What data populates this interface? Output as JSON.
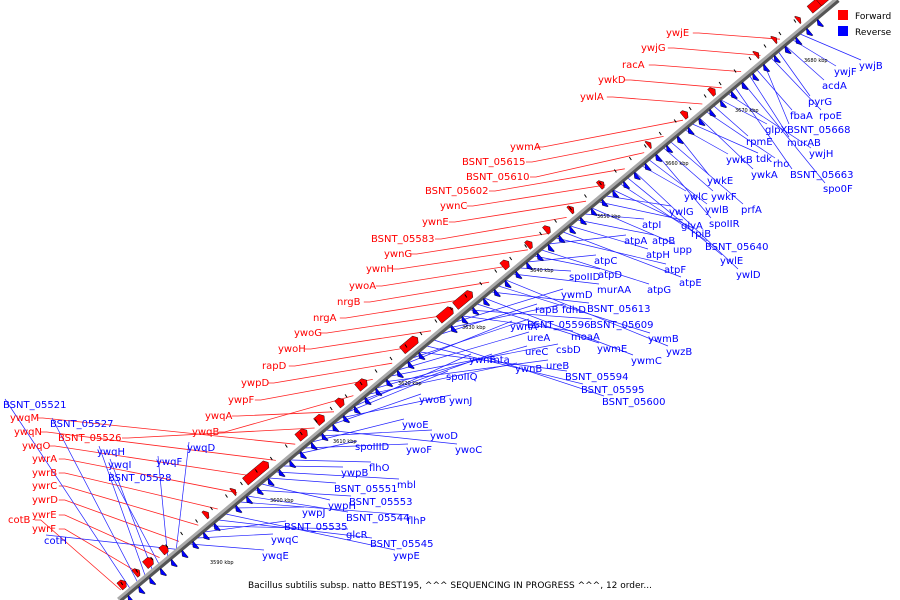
{
  "title": "Bacillus subtilis subsp. natto BEST195, ^^^ SEQUENCING IN PROGRESS ^^^, 12 order...",
  "legend": [
    {
      "label": "Forward",
      "color": "#ff0000"
    },
    {
      "label": "Reverse",
      "color": "#0000ff"
    }
  ],
  "colors": {
    "forward": "#ff0000",
    "reverse": "#0000ff",
    "forward_line": "#ff2020",
    "reverse_line": "#2020ff",
    "axis": "#888888"
  },
  "ticks": [
    "3590 kbp",
    "3600 kbp",
    "3610 kbp",
    "3620 kbp",
    "3630 kbp",
    "3640 kbp",
    "3650 kbp",
    "3660 kbp",
    "3670 kbp",
    "3680 kbp"
  ],
  "forward_genes": [
    "cotB",
    "ywrF",
    "ywrE",
    "ywrD",
    "ywrC",
    "ywrB",
    "ywrA",
    "ywqO",
    "ywqN",
    "ywqM",
    "BSNT_05526",
    "ywqA",
    "ywqB",
    "ywpF",
    "ywpD",
    "rapD",
    "ywoH",
    "ywoG",
    "nrgA",
    "nrgB",
    "ywoA",
    "ywnH",
    "ywnG",
    "BSNT_05583",
    "ywnE",
    "ywnC",
    "BSNT_05602",
    "BSNT_05610",
    "BSNT_05615",
    "ywmA",
    "ywlA",
    "ywkD",
    "racA",
    "ywjG",
    "ywjE"
  ],
  "reverse_genes": [
    "BSNT_05521",
    "BSNT_05527",
    "ywqH",
    "ywqI",
    "BSNT_05528",
    "ywqF",
    "ywqD",
    "cotH",
    "ywqE",
    "ywqC",
    "BSNT_05535",
    "glcR",
    "BSNT_05545",
    "ywpE",
    "ywpJ",
    "flhP",
    "BSNT_05544",
    "BSNT_05553",
    "ywpH",
    "BSNT_05551",
    "mbl",
    "ywpB",
    "flhO",
    "spoIIID",
    "ywoF",
    "ywoE",
    "ywoD",
    "ywoC",
    "ywoB",
    "ywnJ",
    "spoIIQ",
    "ywnF",
    "mta",
    "ywnB",
    "ureC",
    "ureB",
    "csbD",
    "ureA",
    "ywnA",
    "BSNT_05596",
    "BSNT_05594",
    "BSNT_05595",
    "BSNT_05600",
    "rapB",
    "fdhD",
    "ywmD",
    "moaA",
    "BSNT_05609",
    "ywmE",
    "ywmC",
    "BSNT_05613",
    "ywmB",
    "ywzB",
    "murAA",
    "spoIID",
    "atpC",
    "atpD",
    "atpG",
    "atpA",
    "atpF",
    "atpE",
    "atpH",
    "atpB",
    "atpI",
    "upp",
    "glyA",
    "ywlG",
    "rpiB",
    "BSNT_05640",
    "ywlE",
    "ywlD",
    "ywlC",
    "ywlB",
    "spoIIR",
    "ywkF",
    "prfA",
    "ywkE",
    "ywkB",
    "tdk",
    "ywkA",
    "rho",
    "rpmE",
    "glpX",
    "ywjH",
    "BSNT_05663",
    "spo0F",
    "murAB",
    "fbaA",
    "BSNT_05668",
    "rpoE",
    "pyrG",
    "acdA",
    "ywjF",
    "ywjB"
  ]
}
